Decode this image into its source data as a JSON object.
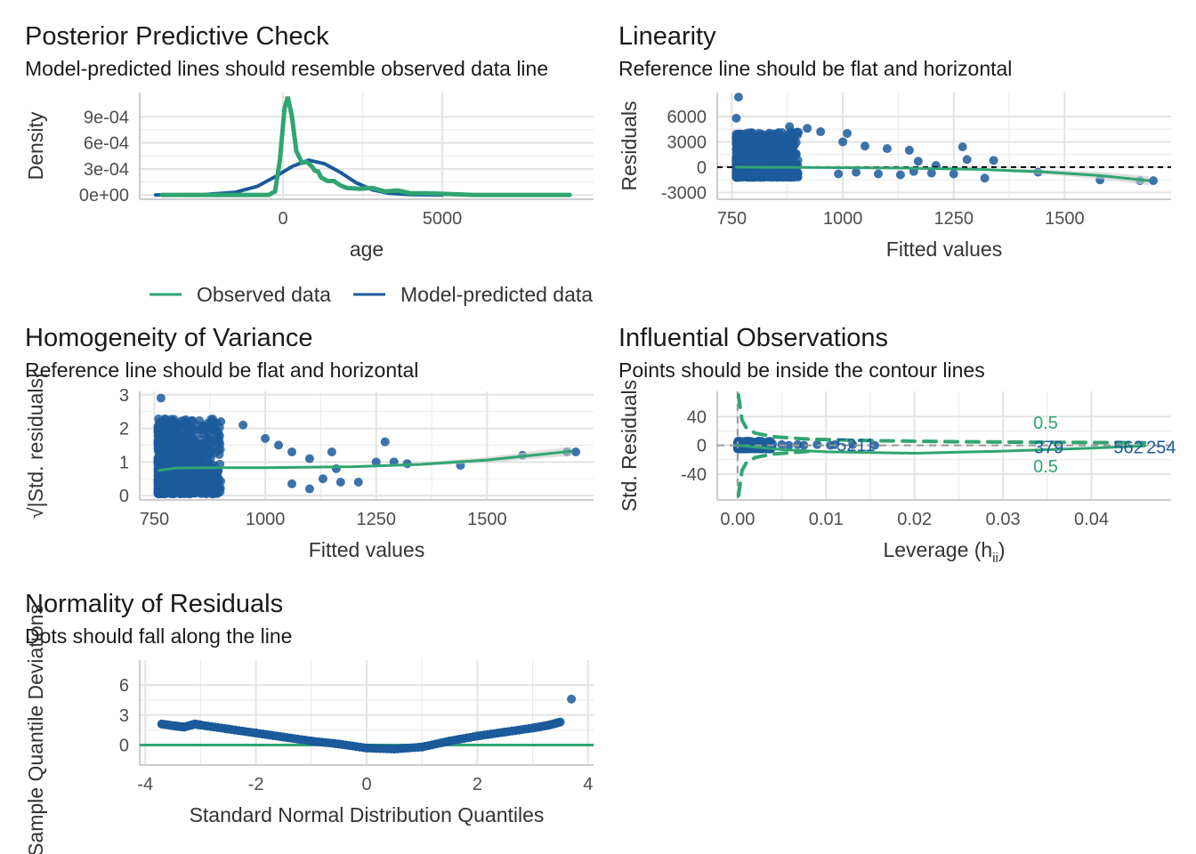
{
  "chart_data": [
    {
      "id": "ppc",
      "type": "line",
      "title": "Posterior Predictive Check",
      "subtitle": "Model-predicted lines should resemble observed data line",
      "xlabel": "age",
      "ylabel": "Density",
      "xlim": [
        -4500,
        9750
      ],
      "ylim": [
        -5e-05,
        0.00118
      ],
      "xticks": [
        {
          "v": 0,
          "l": "0"
        },
        {
          "v": 5000,
          "l": "5000"
        }
      ],
      "yticks": [
        {
          "v": 0,
          "l": "0e+00"
        },
        {
          "v": 0.0003,
          "l": "3e-04"
        },
        {
          "v": 0.0006,
          "l": "6e-04"
        },
        {
          "v": 0.0009,
          "l": "9e-04"
        }
      ],
      "legend": [
        {
          "label": "Observed data",
          "color": "#2fa572"
        },
        {
          "label": "Model-predicted data",
          "color": "#1b5a9b"
        }
      ],
      "series": [
        {
          "name": "Model-predicted data",
          "kind": "line",
          "color": "#1b5a9b",
          "w": 4,
          "points": [
            [
              -4000,
              0
            ],
            [
              -2500,
              4e-06
            ],
            [
              -1500,
              3e-05
            ],
            [
              -800,
              0.0001
            ],
            [
              -200,
              0.00022
            ],
            [
              300,
              0.00033
            ],
            [
              800,
              0.0004
            ],
            [
              1300,
              0.00036
            ],
            [
              1800,
              0.00026
            ],
            [
              2300,
              0.00014
            ],
            [
              2800,
              6e-05
            ],
            [
              3300,
              2e-05
            ],
            [
              4000,
              3e-06
            ],
            [
              5000,
              0
            ]
          ]
        },
        {
          "name": "Observed data",
          "kind": "line",
          "color": "#2fa572",
          "w": 5,
          "points": [
            [
              -3800,
              0
            ],
            [
              -450,
              0
            ],
            [
              -250,
              4e-05
            ],
            [
              -100,
              0.0004
            ],
            [
              50,
              0.001
            ],
            [
              150,
              0.00113
            ],
            [
              280,
              0.0009
            ],
            [
              420,
              0.0005
            ],
            [
              600,
              0.00037
            ],
            [
              750,
              0.00038
            ],
            [
              900,
              0.00033
            ],
            [
              1000,
              0.00028
            ],
            [
              1100,
              0.00027
            ],
            [
              1200,
              0.0002
            ],
            [
              1400,
              0.00016
            ],
            [
              1600,
              0.00016
            ],
            [
              1800,
              0.00011
            ],
            [
              2000,
              8e-05
            ],
            [
              2400,
              7e-05
            ],
            [
              2800,
              8e-05
            ],
            [
              3200,
              4e-05
            ],
            [
              3600,
              5e-05
            ],
            [
              4000,
              2e-05
            ],
            [
              4500,
              2e-05
            ],
            [
              5200,
              1e-05
            ],
            [
              6000,
              0
            ],
            [
              9000,
              0
            ]
          ]
        }
      ]
    },
    {
      "id": "lin",
      "type": "scatter",
      "title": "Linearity",
      "subtitle": "Reference line should be flat and horizontal",
      "xlabel": "Fitted values",
      "ylabel": "Residuals",
      "xlim": [
        717,
        1740
      ],
      "ylim": [
        -3800,
        8840
      ],
      "xticks": [
        {
          "v": 750,
          "l": "750"
        },
        {
          "v": 1000,
          "l": "1000"
        },
        {
          "v": 1250,
          "l": "1250"
        },
        {
          "v": 1500,
          "l": "1500"
        }
      ],
      "yticks": [
        {
          "v": -3000,
          "l": "-3000"
        },
        {
          "v": 0,
          "l": "0"
        },
        {
          "v": 3000,
          "l": "3000"
        },
        {
          "v": 6000,
          "l": "6000"
        }
      ],
      "series": [
        {
          "name": "residuals",
          "kind": "points",
          "color": "#1b5a9b",
          "cloud": {
            "x": [
              760,
              900
            ],
            "y": [
              -1200,
              4200
            ],
            "n": 700
          },
          "points": [
            [
              765,
              8300
            ],
            [
              760,
              5800
            ],
            [
              880,
              4800
            ],
            [
              920,
              4600
            ],
            [
              950,
              4200
            ],
            [
              1010,
              4000
            ],
            [
              1000,
              3000
            ],
            [
              1050,
              2500
            ],
            [
              1100,
              2200
            ],
            [
              1150,
              2000
            ],
            [
              1170,
              700
            ],
            [
              990,
              -800
            ],
            [
              1030,
              -600
            ],
            [
              1080,
              -800
            ],
            [
              1130,
              -900
            ],
            [
              1160,
              -500
            ],
            [
              1200,
              -700
            ],
            [
              1250,
              -800
            ],
            [
              1270,
              2400
            ],
            [
              1280,
              900
            ],
            [
              1340,
              800
            ],
            [
              1320,
              -1300
            ],
            [
              1440,
              -600
            ],
            [
              1580,
              -1500
            ],
            [
              1670,
              -1600
            ],
            [
              1700,
              -1600
            ],
            [
              1210,
              200
            ]
          ]
        },
        {
          "name": "ref",
          "kind": "hline",
          "y": 0,
          "color": "#000",
          "dash": "6,5",
          "w": 2
        },
        {
          "name": "loess",
          "kind": "line",
          "color": "#2fa572",
          "w": 3,
          "band": true,
          "points": [
            [
              760,
              0
            ],
            [
              900,
              -30
            ],
            [
              1000,
              -60
            ],
            [
              1150,
              -120
            ],
            [
              1300,
              -250
            ],
            [
              1450,
              -550
            ],
            [
              1580,
              -1000
            ],
            [
              1690,
              -1600
            ]
          ]
        }
      ]
    },
    {
      "id": "hov",
      "type": "scatter",
      "title": "Homogeneity of Variance",
      "subtitle": "Reference line should be flat and horizontal",
      "xlabel": "Fitted values",
      "ylabel": "√|Std. residuals|",
      "xlim": [
        717,
        1740
      ],
      "ylim": [
        -0.13,
        3.1
      ],
      "xticks": [
        {
          "v": 750,
          "l": "750"
        },
        {
          "v": 1000,
          "l": "1000"
        },
        {
          "v": 1250,
          "l": "1250"
        },
        {
          "v": 1500,
          "l": "1500"
        }
      ],
      "yticks": [
        {
          "v": 0,
          "l": "0"
        },
        {
          "v": 1,
          "l": "1"
        },
        {
          "v": 2,
          "l": "2"
        },
        {
          "v": 3,
          "l": "3"
        }
      ],
      "series": [
        {
          "name": "points",
          "kind": "points",
          "color": "#1b5a9b",
          "cloud": {
            "x": [
              758,
              900
            ],
            "y": [
              0.05,
              2.3
            ],
            "n": 700
          },
          "points": [
            [
              765,
              2.9
            ],
            [
              900,
              2.2
            ],
            [
              950,
              2.1
            ],
            [
              1000,
              1.7
            ],
            [
              1030,
              1.5
            ],
            [
              1060,
              1.3
            ],
            [
              1100,
              1.1
            ],
            [
              1100,
              0.2
            ],
            [
              1130,
              0.5
            ],
            [
              1150,
              1.3
            ],
            [
              1160,
              0.8
            ],
            [
              1170,
              0.4
            ],
            [
              1210,
              0.4
            ],
            [
              1250,
              1.0
            ],
            [
              1270,
              1.6
            ],
            [
              1290,
              1.0
            ],
            [
              1320,
              0.95
            ],
            [
              1440,
              0.9
            ],
            [
              1580,
              1.2
            ],
            [
              1680,
              1.3
            ],
            [
              1700,
              1.3
            ],
            [
              1060,
              0.35
            ]
          ]
        },
        {
          "name": "loess",
          "kind": "line",
          "color": "#2fa572",
          "w": 3,
          "band": true,
          "points": [
            [
              760,
              0.75
            ],
            [
              800,
              0.82
            ],
            [
              900,
              0.83
            ],
            [
              1000,
              0.83
            ],
            [
              1200,
              0.86
            ],
            [
              1350,
              0.93
            ],
            [
              1500,
              1.06
            ],
            [
              1690,
              1.32
            ]
          ]
        }
      ]
    },
    {
      "id": "infl",
      "type": "scatter",
      "title": "Influential Observations",
      "subtitle": "Points should be inside the contour lines",
      "xlabel": "Leverage (h",
      "xlabel_sub": "ii",
      "xlabel_end": ")",
      "ylabel": "Std. Residuals",
      "xlim": [
        -0.0023,
        0.049
      ],
      "ylim": [
        -76,
        75
      ],
      "xticks": [
        {
          "v": 0,
          "l": "0.00"
        },
        {
          "v": 0.01,
          "l": "0.01"
        },
        {
          "v": 0.02,
          "l": "0.02"
        },
        {
          "v": 0.03,
          "l": "0.03"
        },
        {
          "v": 0.04,
          "l": "0.04"
        }
      ],
      "yticks": [
        {
          "v": -40,
          "l": "-40"
        },
        {
          "v": 0,
          "l": "0"
        },
        {
          "v": 40,
          "l": "40"
        }
      ],
      "contour_label": "0.5",
      "point_labels": [
        {
          "x": 0.0112,
          "y": 2,
          "l": "5211"
        },
        {
          "x": 0.0335,
          "y": -1,
          "l": "379"
        },
        {
          "x": 0.0425,
          "y": -1,
          "l": "562"
        },
        {
          "x": 0.0462,
          "y": -1,
          "l": "254"
        }
      ],
      "series": [
        {
          "name": "points",
          "kind": "points",
          "color": "#1b5a9b",
          "cloud": {
            "x": [
              0,
              0.004
            ],
            "y": [
              -5,
              6
            ],
            "n": 250
          },
          "points": [
            [
              0.005,
              1
            ],
            [
              0.0058,
              0
            ],
            [
              0.0068,
              1
            ],
            [
              0.0075,
              0
            ],
            [
              0.009,
              1
            ],
            [
              0.0105,
              0
            ],
            [
              0.011,
              1
            ],
            [
              0.013,
              1
            ],
            [
              0.0155,
              0
            ]
          ]
        },
        {
          "name": "ref-h",
          "kind": "hline",
          "y": 0,
          "color": "#999",
          "dash": "8,6",
          "w": 2
        },
        {
          "name": "ref-v",
          "kind": "vline",
          "x": 0,
          "color": "#999",
          "dash": "8,6",
          "w": 2
        },
        {
          "name": "contour-upper",
          "kind": "line",
          "color": "#2fa572",
          "w": 4,
          "dash": "14,10",
          "points": [
            [
              0.0001,
              70
            ],
            [
              0.0005,
              35
            ],
            [
              0.001,
              24
            ],
            [
              0.002,
              17
            ],
            [
              0.004,
              12
            ],
            [
              0.008,
              8.5
            ],
            [
              0.015,
              6.5
            ],
            [
              0.025,
              5
            ],
            [
              0.035,
              4.2
            ],
            [
              0.046,
              3.6
            ]
          ]
        },
        {
          "name": "contour-lower",
          "kind": "line",
          "color": "#2fa572",
          "w": 4,
          "dash": "14,10",
          "points": [
            [
              0.0001,
              -70
            ],
            [
              0.0005,
              -35
            ],
            [
              0.001,
              -24
            ],
            [
              0.002,
              -17
            ],
            [
              0.004,
              -12
            ],
            [
              0.008,
              -8.5
            ]
          ]
        },
        {
          "name": "loess",
          "kind": "line",
          "color": "#2fa572",
          "w": 3,
          "points": [
            [
              0,
              0
            ],
            [
              0.005,
              -6
            ],
            [
              0.01,
              -9
            ],
            [
              0.02,
              -11
            ],
            [
              0.03,
              -8
            ],
            [
              0.04,
              -4
            ],
            [
              0.046,
              -1
            ]
          ]
        }
      ]
    },
    {
      "id": "qq",
      "type": "scatter",
      "title": "Normality of Residuals",
      "subtitle": "Dots should fall along the line",
      "xlabel": "Standard Normal Distribution Quantiles",
      "ylabel": "Sample Quantile Deviations",
      "xlim": [
        -4.1,
        4.1
      ],
      "ylim": [
        -2,
        8.5
      ],
      "xticks": [
        {
          "v": -4,
          "l": "-4"
        },
        {
          "v": -2,
          "l": "-2"
        },
        {
          "v": 0,
          "l": "0"
        },
        {
          "v": 2,
          "l": "2"
        },
        {
          "v": 4,
          "l": "4"
        }
      ],
      "yticks": [
        {
          "v": 0,
          "l": "0"
        },
        {
          "v": 3,
          "l": "3"
        },
        {
          "v": 6,
          "l": "6"
        }
      ],
      "series": [
        {
          "name": "ref",
          "kind": "hline",
          "y": 0,
          "color": "#2fa572",
          "w": 3
        },
        {
          "name": "qq-points",
          "kind": "qq",
          "color": "#1b5a9b",
          "points": [
            [
              -3.7,
              2.1
            ],
            [
              -3.45,
              1.9
            ],
            [
              -3.3,
              1.8
            ],
            [
              -3.1,
              2.1
            ],
            [
              -3,
              2.0
            ],
            [
              -2.5,
              1.6
            ],
            [
              -2,
              1.2
            ],
            [
              -1.5,
              0.8
            ],
            [
              -1,
              0.4
            ],
            [
              -0.5,
              0.1
            ],
            [
              0,
              -0.3
            ],
            [
              0.5,
              -0.4
            ],
            [
              1,
              -0.2
            ],
            [
              1.5,
              0.4
            ],
            [
              2,
              0.9
            ],
            [
              2.5,
              1.3
            ],
            [
              3,
              1.7
            ],
            [
              3.3,
              2.0
            ],
            [
              3.5,
              2.3
            ],
            [
              3.7,
              4.6
            ]
          ]
        }
      ]
    }
  ]
}
